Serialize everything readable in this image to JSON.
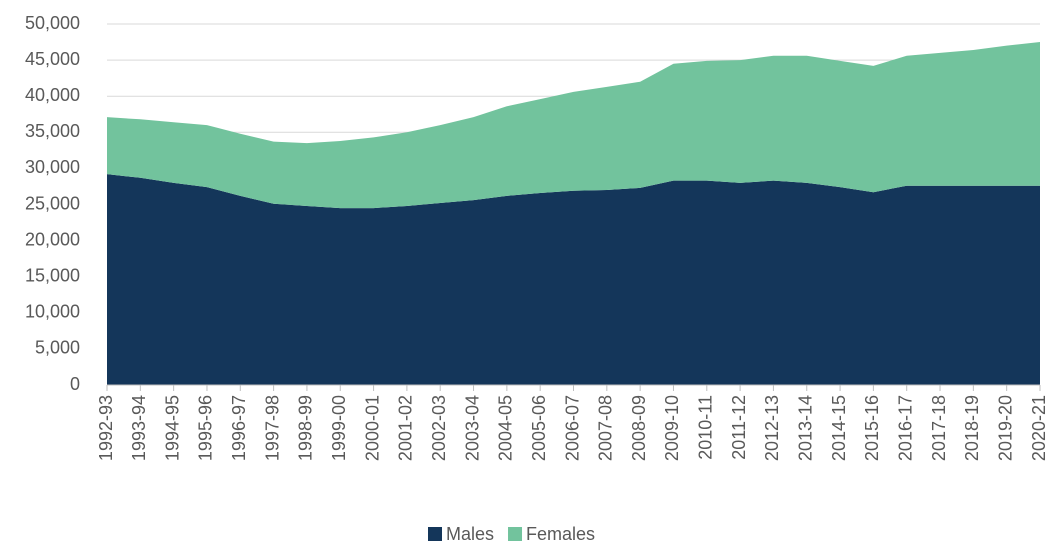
{
  "chart_data": {
    "type": "area",
    "stacked": true,
    "categories": [
      "1992-93",
      "1993-94",
      "1994-95",
      "1995-96",
      "1996-97",
      "1997-98",
      "1998-99",
      "1999-00",
      "2000-01",
      "2001-02",
      "2002-03",
      "2003-04",
      "2004-05",
      "2005-06",
      "2006-07",
      "2007-08",
      "2008-09",
      "2009-10",
      "2010-11",
      "2011-12",
      "2012-13",
      "2013-14",
      "2014-15",
      "2015-16",
      "2016-17",
      "2017-18",
      "2018-19",
      "2019-20",
      "2020-21"
    ],
    "series": [
      {
        "name": "Males",
        "color": "#14365a",
        "values": [
          29200,
          28700,
          28000,
          27400,
          26200,
          25100,
          24800,
          24500,
          24500,
          24800,
          25200,
          25600,
          26200,
          26600,
          26900,
          27000,
          27300,
          28300,
          28300,
          28000,
          28300,
          28000,
          27400,
          26700,
          27600,
          27600,
          27600,
          27600,
          27600
        ]
      },
      {
        "name": "Females",
        "color": "#72c39d",
        "values": [
          7900,
          8100,
          8400,
          8600,
          8600,
          8600,
          8700,
          9300,
          9800,
          10200,
          10800,
          11500,
          12400,
          13000,
          13700,
          14300,
          14700,
          16200,
          16600,
          17000,
          17300,
          17600,
          17500,
          17500,
          18000,
          18400,
          18800,
          19400,
          19900
        ]
      }
    ],
    "ylim": [
      0,
      50000
    ],
    "yticks": [
      0,
      {
        "value": 5000,
        "label": "5,000"
      },
      {
        "value": 10000,
        "label": "10,000"
      },
      {
        "value": 15000,
        "label": "15,000"
      },
      {
        "value": 20000,
        "label": "20,000"
      },
      {
        "value": 25000,
        "label": "25,000"
      },
      {
        "value": 30000,
        "label": "30,000"
      },
      {
        "value": 35000,
        "label": "35,000"
      },
      {
        "value": 40000,
        "label": "40,000"
      },
      {
        "value": 45000,
        "label": "45,000"
      },
      {
        "value": 50000,
        "label": "50,000"
      }
    ],
    "grid": true,
    "legend": "bottom"
  }
}
